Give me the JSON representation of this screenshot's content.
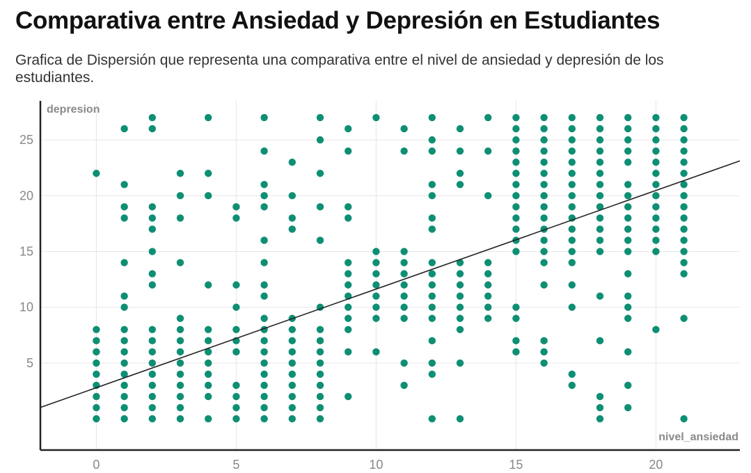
{
  "header": {
    "title": "Comparativa entre Ansiedad y Depresión en Estudiantes",
    "subtitle": "Grafica de Dispersión que representa una comparativa entre el nivel de ansiedad y depresión de los estudiantes."
  },
  "chart_data": {
    "type": "scatter",
    "xlabel": "nivel_ansiedad",
    "ylabel": "depresion",
    "xlim": [
      -2,
      23
    ],
    "ylim": [
      -2.8,
      28.5
    ],
    "xticks": [
      0,
      5,
      10,
      15,
      20
    ],
    "yticks": [
      5,
      10,
      15,
      20,
      25
    ],
    "grid": true,
    "point_color": "#0e8f73",
    "trendline": {
      "color": "#222222",
      "x": [
        -2,
        23
      ],
      "y": [
        1.02,
        23.12
      ]
    },
    "points": {
      "0": [
        0,
        1,
        2,
        3,
        4,
        5,
        6,
        7,
        8,
        22
      ],
      "1": [
        0,
        1,
        2,
        3,
        4,
        5,
        6,
        7,
        8,
        10,
        11,
        14,
        18,
        19,
        21,
        26
      ],
      "2": [
        0,
        1,
        2,
        3,
        4,
        5,
        6,
        7,
        8,
        12,
        13,
        15,
        17,
        18,
        19,
        26,
        27
      ],
      "3": [
        0,
        1,
        2,
        3,
        4,
        5,
        6,
        7,
        8,
        9,
        14,
        18,
        20,
        22
      ],
      "4": [
        0,
        2,
        3,
        4,
        5,
        6,
        7,
        8,
        12,
        20,
        22,
        27
      ],
      "5": [
        0,
        1,
        2,
        3,
        6,
        7,
        8,
        10,
        12,
        18,
        19
      ],
      "6": [
        0,
        1,
        2,
        3,
        4,
        5,
        6,
        7,
        8,
        9,
        11,
        12,
        14,
        16,
        19,
        20,
        21,
        24,
        27
      ],
      "7": [
        0,
        1,
        2,
        3,
        4,
        5,
        6,
        7,
        8,
        9,
        17,
        18,
        20,
        23
      ],
      "8": [
        0,
        1,
        2,
        3,
        4,
        5,
        6,
        7,
        8,
        10,
        16,
        19,
        22,
        25,
        27
      ],
      "9": [
        2,
        6,
        8,
        9,
        10,
        11,
        12,
        13,
        14,
        18,
        19,
        24,
        26
      ],
      "10": [
        6,
        9,
        10,
        11,
        12,
        13,
        14,
        15,
        27
      ],
      "11": [
        3,
        5,
        9,
        10,
        11,
        12,
        13,
        14,
        15,
        24,
        26
      ],
      "12": [
        0,
        4,
        5,
        7,
        9,
        10,
        11,
        12,
        13,
        14,
        17,
        18,
        20,
        21,
        24,
        25,
        27
      ],
      "13": [
        0,
        5,
        8,
        9,
        10,
        11,
        12,
        13,
        14,
        21,
        22,
        24,
        26
      ],
      "14": [
        9,
        10,
        11,
        12,
        13,
        14,
        20,
        24,
        27
      ],
      "15": [
        6,
        7,
        9,
        10,
        15,
        16,
        17,
        18,
        19,
        20,
        21,
        22,
        23,
        24,
        25,
        26,
        27
      ],
      "16": [
        5,
        6,
        7,
        12,
        14,
        15,
        16,
        17,
        18,
        19,
        20,
        21,
        22,
        23,
        24,
        25,
        26,
        27
      ],
      "17": [
        3,
        4,
        10,
        12,
        14,
        15,
        16,
        17,
        18,
        19,
        20,
        21,
        22,
        23,
        24,
        25,
        26,
        27
      ],
      "18": [
        0,
        1,
        2,
        7,
        11,
        15,
        16,
        17,
        18,
        19,
        20,
        21,
        22,
        23,
        24,
        25,
        26,
        27
      ],
      "19": [
        1,
        3,
        6,
        9,
        10,
        11,
        13,
        15,
        16,
        17,
        18,
        19,
        20,
        21,
        23,
        24,
        25,
        26,
        27
      ],
      "20": [
        8,
        15,
        16,
        17,
        18,
        19,
        20,
        21,
        22,
        23,
        24,
        25,
        26,
        27
      ],
      "21": [
        0,
        9,
        13,
        14,
        15,
        16,
        17,
        18,
        19,
        20,
        21,
        22,
        23,
        24,
        25,
        26,
        27
      ]
    }
  }
}
